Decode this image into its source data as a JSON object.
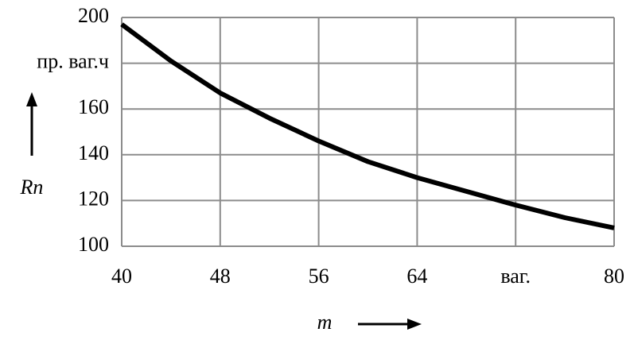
{
  "chart_data": {
    "type": "line",
    "x": [
      40,
      44,
      48,
      52,
      56,
      60,
      64,
      68,
      72,
      76,
      80
    ],
    "values": [
      197,
      181,
      167,
      156,
      146,
      137,
      130,
      124,
      118,
      112.5,
      108
    ],
    "color": "#000000",
    "xlim": [
      40,
      80
    ],
    "ylim": [
      100,
      200
    ],
    "xticks": [
      40,
      48,
      56,
      64,
      {
        "value": 72,
        "label": "ваг."
      },
      80
    ],
    "yticks": [
      100,
      120,
      140,
      {
        "value": 160,
        "label": "160"
      },
      {
        "value": 180,
        "label": "пр. ваг.ч"
      },
      200
    ],
    "x_label": "m",
    "y_label": "Rn",
    "grid": true
  }
}
